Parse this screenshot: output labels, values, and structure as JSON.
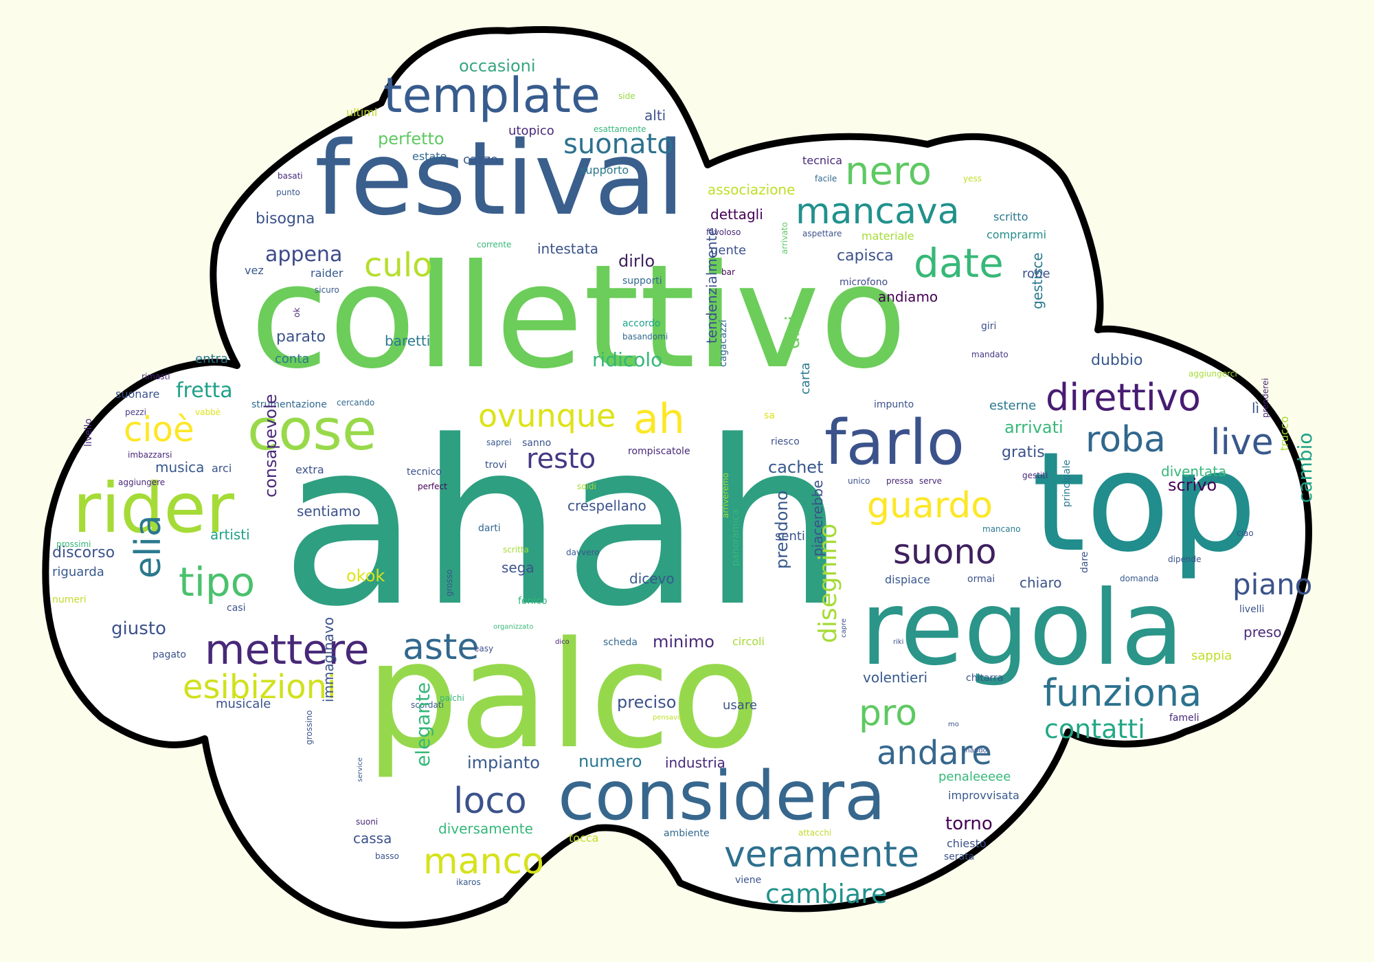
{
  "colors": {
    "background": "#fdfdec",
    "cloud_fill": "#ffffff",
    "cloud_outline": "#000000"
  },
  "words": [
    {
      "text": "collettivo",
      "color": "#6ccd5a"
    },
    {
      "text": "ahah",
      "color": "#2e9f81"
    },
    {
      "text": "top",
      "color": "#218d8c"
    },
    {
      "text": "palco",
      "color": "#96d84c"
    },
    {
      "text": "festival",
      "color": "#3a5f8d"
    },
    {
      "text": "regola",
      "color": "#2a9588"
    },
    {
      "text": "considera",
      "color": "#37678d"
    },
    {
      "text": "template",
      "color": "#375b8d"
    },
    {
      "text": "cose",
      "color": "#98d94a"
    },
    {
      "text": "rider",
      "color": "#a5db36"
    },
    {
      "text": "farlo",
      "color": "#3b528b"
    },
    {
      "text": "mancava",
      "color": "#21918c"
    },
    {
      "text": "date",
      "color": "#37b878"
    },
    {
      "text": "nero",
      "color": "#5ec962"
    },
    {
      "text": "culo",
      "color": "#b5de2b"
    },
    {
      "text": "suonato",
      "color": "#2c728e"
    },
    {
      "text": "direttivo",
      "color": "#471c72"
    },
    {
      "text": "roba",
      "color": "#30678d"
    },
    {
      "text": "live",
      "color": "#38588c"
    },
    {
      "text": "ovunque",
      "color": "#dde318"
    },
    {
      "text": "ah",
      "color": "#fde725"
    },
    {
      "text": "cioè",
      "color": "#fde725"
    },
    {
      "text": "resto",
      "color": "#443983"
    },
    {
      "text": "tipo",
      "color": "#4ac16d"
    },
    {
      "text": "elia",
      "color": "#2a788e"
    },
    {
      "text": "mettere",
      "color": "#482878"
    },
    {
      "text": "aste",
      "color": "#31688e"
    },
    {
      "text": "esibizioni",
      "color": "#d0e11c"
    },
    {
      "text": "guardo",
      "color": "#fde725"
    },
    {
      "text": "suono",
      "color": "#3e1f5e"
    },
    {
      "text": "funziona",
      "color": "#2c728e"
    },
    {
      "text": "piano",
      "color": "#3b528b"
    },
    {
      "text": "andare",
      "color": "#37678d"
    },
    {
      "text": "pro",
      "color": "#5ec962"
    },
    {
      "text": "contatti",
      "color": "#22a884"
    },
    {
      "text": "veramente",
      "color": "#2d708e"
    },
    {
      "text": "manco",
      "color": "#d5e21a"
    },
    {
      "text": "loco",
      "color": "#3b528b"
    },
    {
      "text": "cambiare",
      "color": "#21918c"
    },
    {
      "text": "occasioni",
      "color": "#37a582"
    },
    {
      "text": "perfetto",
      "color": "#5ec962"
    },
    {
      "text": "estate",
      "color": "#31688e"
    },
    {
      "text": "cazzo",
      "color": "#37588c"
    },
    {
      "text": "utopico",
      "color": "#482878"
    },
    {
      "text": "alti",
      "color": "#3b528b"
    },
    {
      "text": "ultimi",
      "color": "#c4d92c"
    },
    {
      "text": "side",
      "color": "#95d840"
    },
    {
      "text": "esattamente",
      "color": "#35b779"
    },
    {
      "text": "supporto",
      "color": "#2a788e"
    },
    {
      "text": "basati",
      "color": "#482878"
    },
    {
      "text": "punto",
      "color": "#37588c"
    },
    {
      "text": "associazione",
      "color": "#bddf26"
    },
    {
      "text": "tecnica",
      "color": "#482878"
    },
    {
      "text": "facile",
      "color": "#31688e"
    },
    {
      "text": "yess",
      "color": "#bddf26"
    },
    {
      "text": "scritto",
      "color": "#2a788e"
    },
    {
      "text": "bisogna",
      "color": "#3b528b"
    },
    {
      "text": "dettagli",
      "color": "#440154"
    },
    {
      "text": "favoloso",
      "color": "#482878"
    },
    {
      "text": "aspettare",
      "color": "#3b528b"
    },
    {
      "text": "materiale",
      "color": "#a5db36"
    },
    {
      "text": "comprarmi",
      "color": "#218d8c"
    },
    {
      "text": "appena",
      "color": "#3e4a89"
    },
    {
      "text": "corrente",
      "color": "#37b878"
    },
    {
      "text": "intestata",
      "color": "#3b528b"
    },
    {
      "text": "gente",
      "color": "#3b528b"
    },
    {
      "text": "arrivato",
      "color": "#5ec962"
    },
    {
      "text": "capisca",
      "color": "#3b528b"
    },
    {
      "text": "dirlo",
      "color": "#3e1f5e"
    },
    {
      "text": "vez",
      "color": "#37588c"
    },
    {
      "text": "raider",
      "color": "#37588c"
    },
    {
      "text": "supporti",
      "color": "#31688e"
    },
    {
      "text": "bar",
      "color": "#440154"
    },
    {
      "text": "microfono",
      "color": "#3e4a89"
    },
    {
      "text": "robe",
      "color": "#3b528b"
    },
    {
      "text": "sicuro",
      "color": "#37588c"
    },
    {
      "text": "andiamo",
      "color": "#440154"
    },
    {
      "text": "ok",
      "color": "#482878"
    },
    {
      "text": "accordo",
      "color": "#1fa188"
    },
    {
      "text": "basandomi",
      "color": "#31688e"
    },
    {
      "text": "parato",
      "color": "#3b528b"
    },
    {
      "text": "baretti",
      "color": "#2a788e"
    },
    {
      "text": "giri",
      "color": "#3b528b"
    },
    {
      "text": "gestisce",
      "color": "#2a788e"
    },
    {
      "text": "tendenzialmente",
      "color": "#3b528b"
    },
    {
      "text": "cagacazzi",
      "color": "#31688e"
    },
    {
      "text": "mandato",
      "color": "#443983"
    },
    {
      "text": "ridicolo",
      "color": "#35b779"
    },
    {
      "text": "dici",
      "color": "#6ccd5a"
    },
    {
      "text": "entra",
      "color": "#2a788e"
    },
    {
      "text": "conta",
      "color": "#2a788e"
    },
    {
      "text": "carta",
      "color": "#2a788e"
    },
    {
      "text": "dubbio",
      "color": "#37588c"
    },
    {
      "text": "rimasti",
      "color": "#482878"
    },
    {
      "text": "aggiungerci",
      "color": "#a5db36"
    },
    {
      "text": "suonare",
      "color": "#3b528b"
    },
    {
      "text": "fretta",
      "color": "#1fa188"
    },
    {
      "text": "pezzi",
      "color": "#443983"
    },
    {
      "text": "vabbè",
      "color": "#dde318"
    },
    {
      "text": "strumentazione",
      "color": "#31688e"
    },
    {
      "text": "cercando",
      "color": "#31688e"
    },
    {
      "text": "sa",
      "color": "#dde318"
    },
    {
      "text": "impunto",
      "color": "#3b528b"
    },
    {
      "text": "esterne",
      "color": "#2a788e"
    },
    {
      "text": "lì",
      "color": "#3b528b"
    },
    {
      "text": "arrivati",
      "color": "#37b878"
    },
    {
      "text": "prenderei",
      "color": "#482878"
    },
    {
      "text": "livello",
      "color": "#482878"
    },
    {
      "text": "imbazzarsi",
      "color": "#482878"
    },
    {
      "text": "saprei",
      "color": "#37588c"
    },
    {
      "text": "sanno",
      "color": "#3b528b"
    },
    {
      "text": "riesco",
      "color": "#3b528b"
    },
    {
      "text": "rompiscatole",
      "color": "#482878"
    },
    {
      "text": "gratis",
      "color": "#3b528b"
    },
    {
      "text": "trucco",
      "color": "#a5db36"
    },
    {
      "text": "musica",
      "color": "#37588c"
    },
    {
      "text": "arci",
      "color": "#3b528b"
    },
    {
      "text": "extra",
      "color": "#3b528b"
    },
    {
      "text": "trovi",
      "color": "#3b528b"
    },
    {
      "text": "cachet",
      "color": "#37588c"
    },
    {
      "text": "diventata",
      "color": "#35b779"
    },
    {
      "text": "aggiungere",
      "color": "#482878"
    },
    {
      "text": "tecnico",
      "color": "#3b528b"
    },
    {
      "text": "perfect",
      "color": "#440154"
    },
    {
      "text": "soldi",
      "color": "#a5db36"
    },
    {
      "text": "unico",
      "color": "#3b528b"
    },
    {
      "text": "pressa",
      "color": "#482878"
    },
    {
      "text": "serve",
      "color": "#482878"
    },
    {
      "text": "gestiti",
      "color": "#482878"
    },
    {
      "text": "scrivo",
      "color": "#440154"
    },
    {
      "text": "consapevole",
      "color": "#482878"
    },
    {
      "text": "sentiamo",
      "color": "#3b528b"
    },
    {
      "text": "crespellano",
      "color": "#3b528b"
    },
    {
      "text": "cambio",
      "color": "#1fa188"
    },
    {
      "text": "discorso",
      "color": "#3b528b"
    },
    {
      "text": "prossimi",
      "color": "#35b779"
    },
    {
      "text": "artisti",
      "color": "#1fa188"
    },
    {
      "text": "darti",
      "color": "#31688e"
    },
    {
      "text": "arriveremo",
      "color": "#a5db36"
    },
    {
      "text": "senti",
      "color": "#3b528b"
    },
    {
      "text": "mancano",
      "color": "#2a788e"
    },
    {
      "text": "principale",
      "color": "#2a788e"
    },
    {
      "text": "dipende",
      "color": "#3b528b"
    },
    {
      "text": "ciao",
      "color": "#3b528b"
    },
    {
      "text": "riguarda",
      "color": "#37588c"
    },
    {
      "text": "scritta",
      "color": "#a5db36"
    },
    {
      "text": "davvero",
      "color": "#37588c"
    },
    {
      "text": "numeri",
      "color": "#c4d92c"
    },
    {
      "text": "sega",
      "color": "#3b528b"
    },
    {
      "text": "panoramica",
      "color": "#35b779"
    },
    {
      "text": "dispiace",
      "color": "#37588c"
    },
    {
      "text": "ormai",
      "color": "#3b528b"
    },
    {
      "text": "chiaro",
      "color": "#3b528b"
    },
    {
      "text": "dare",
      "color": "#3b528b"
    },
    {
      "text": "domanda",
      "color": "#37588c"
    },
    {
      "text": "okok",
      "color": "#dde318"
    },
    {
      "text": "dicevo",
      "color": "#37588c"
    },
    {
      "text": "prendono",
      "color": "#37588c"
    },
    {
      "text": "piacerebbe",
      "color": "#3b528b"
    },
    {
      "text": "livelli",
      "color": "#3b528b"
    },
    {
      "text": "giusto",
      "color": "#3b528b"
    },
    {
      "text": "casi",
      "color": "#3b528b"
    },
    {
      "text": "fonico",
      "color": "#35b779"
    },
    {
      "text": "grosso",
      "color": "#3b528b"
    },
    {
      "text": "organizzato",
      "color": "#37b878"
    },
    {
      "text": "pagato",
      "color": "#3b528b"
    },
    {
      "text": "scheda",
      "color": "#31688e"
    },
    {
      "text": "minimo",
      "color": "#482878"
    },
    {
      "text": "dico",
      "color": "#482878"
    },
    {
      "text": "circoli",
      "color": "#a5db36"
    },
    {
      "text": "capre",
      "color": "#3b528b"
    },
    {
      "text": "riki",
      "color": "#3b528b"
    },
    {
      "text": "preso",
      "color": "#482878"
    },
    {
      "text": "easy",
      "color": "#3b528b"
    },
    {
      "text": "disegnino",
      "color": "#a5db36"
    },
    {
      "text": "sappia",
      "color": "#bddf26"
    },
    {
      "text": "volentieri",
      "color": "#37588c"
    },
    {
      "text": "chitarra",
      "color": "#3b528b"
    },
    {
      "text": "musicale",
      "color": "#3b528b"
    },
    {
      "text": "scordati",
      "color": "#37588c"
    },
    {
      "text": "palchi",
      "color": "#35b779"
    },
    {
      "text": "preciso",
      "color": "#3b528b"
    },
    {
      "text": "usare",
      "color": "#3b528b"
    },
    {
      "text": "pensavo",
      "color": "#bddf26"
    },
    {
      "text": "mo",
      "color": "#3b528b"
    },
    {
      "text": "fameli",
      "color": "#482878"
    },
    {
      "text": "immaginavo",
      "color": "#3b528b"
    },
    {
      "text": "grossino",
      "color": "#3b528b"
    },
    {
      "text": "elegante",
      "color": "#35b779"
    },
    {
      "text": "impianto",
      "color": "#37588c"
    },
    {
      "text": "numero",
      "color": "#2a788e"
    },
    {
      "text": "industria",
      "color": "#482878"
    },
    {
      "text": "mando",
      "color": "#3b528b"
    },
    {
      "text": "penaleeeee",
      "color": "#35b779"
    },
    {
      "text": "service",
      "color": "#37588c"
    },
    {
      "text": "improvvisata",
      "color": "#37588c"
    },
    {
      "text": "suoni",
      "color": "#482878"
    },
    {
      "text": "cassa",
      "color": "#3b528b"
    },
    {
      "text": "diversamente",
      "color": "#35b779"
    },
    {
      "text": "torno",
      "color": "#440154"
    },
    {
      "text": "basso",
      "color": "#3b528b"
    },
    {
      "text": "tocca",
      "color": "#bddf26"
    },
    {
      "text": "ambiente",
      "color": "#31688e"
    },
    {
      "text": "attacchi",
      "color": "#c4d92c"
    },
    {
      "text": "chiesto",
      "color": "#3b528b"
    },
    {
      "text": "serata",
      "color": "#3b528b"
    },
    {
      "text": "viene",
      "color": "#3b528b"
    },
    {
      "text": "ikaros",
      "color": "#37588c"
    }
  ]
}
